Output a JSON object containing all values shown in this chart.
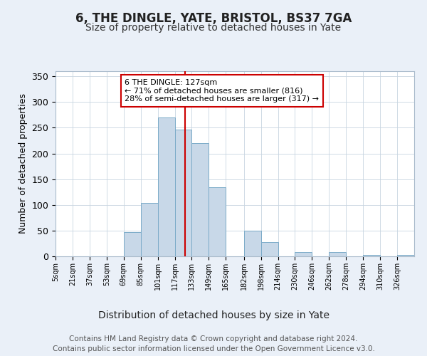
{
  "title": "6, THE DINGLE, YATE, BRISTOL, BS37 7GA",
  "subtitle": "Size of property relative to detached houses in Yate",
  "xlabel": "Distribution of detached houses by size in Yate",
  "ylabel": "Number of detached properties",
  "bin_edges": [
    5,
    21,
    37,
    53,
    69,
    85,
    101,
    117,
    133,
    149,
    165,
    182,
    198,
    214,
    230,
    246,
    262,
    278,
    294,
    310,
    326,
    342
  ],
  "bin_labels": [
    "5sqm",
    "21sqm",
    "37sqm",
    "53sqm",
    "69sqm",
    "85sqm",
    "101sqm",
    "117sqm",
    "133sqm",
    "149sqm",
    "165sqm",
    "182sqm",
    "198sqm",
    "214sqm",
    "230sqm",
    "246sqm",
    "262sqm",
    "278sqm",
    "294sqm",
    "310sqm",
    "326sqm"
  ],
  "bar_heights": [
    0,
    0,
    0,
    0,
    47,
    104,
    270,
    246,
    220,
    135,
    0,
    50,
    28,
    0,
    8,
    0,
    8,
    0,
    3,
    0,
    3
  ],
  "bar_color": "#c8d8e8",
  "bar_edge_color": "#7aaac8",
  "property_size": 127,
  "vline_color": "#cc0000",
  "annotation_text": "6 THE DINGLE: 127sqm\n← 71% of detached houses are smaller (816)\n28% of semi-detached houses are larger (317) →",
  "annotation_box_color": "#ffffff",
  "annotation_box_edge_color": "#cc0000",
  "ylim": [
    0,
    360
  ],
  "yticks": [
    0,
    50,
    100,
    150,
    200,
    250,
    300,
    350
  ],
  "bg_color": "#eaf0f8",
  "plot_bg_color": "#ffffff",
  "footer": "Contains HM Land Registry data © Crown copyright and database right 2024.\nContains public sector information licensed under the Open Government Licence v3.0.",
  "title_fontsize": 12,
  "subtitle_fontsize": 10,
  "xlabel_fontsize": 10,
  "ylabel_fontsize": 9,
  "footer_fontsize": 7.5,
  "annotation_fontsize": 8
}
